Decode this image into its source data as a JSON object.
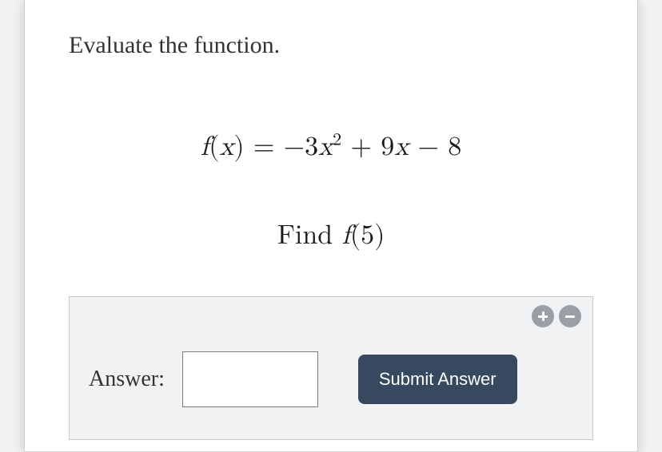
{
  "instruction": "Evaluate the function.",
  "equation": {
    "lhs_func": "f",
    "lhs_var": "x",
    "coef_a": "−3",
    "var_a": "x",
    "exp_a": "2",
    "op1": "+",
    "coef_b": "9",
    "var_b": "x",
    "op2": "−",
    "const_c": "8"
  },
  "find": {
    "prefix": "Find ",
    "func": "f",
    "arg": "5"
  },
  "answer_panel": {
    "label": "Answer:",
    "input_value": "",
    "submit_label": "Submit Answer"
  },
  "styles": {
    "card_bg": "#ffffff",
    "page_bg": "#e8e8e8",
    "panel_bg": "#f1f2f4",
    "panel_border": "#c9c9c9",
    "submit_bg": "#36495f",
    "submit_fg": "#ffffff",
    "ctrl_bg": "#9aa0a6",
    "text_color": "#333333",
    "instruction_fontsize": 30,
    "math_fontsize": 34,
    "answer_label_fontsize": 28,
    "submit_fontsize": 22
  }
}
